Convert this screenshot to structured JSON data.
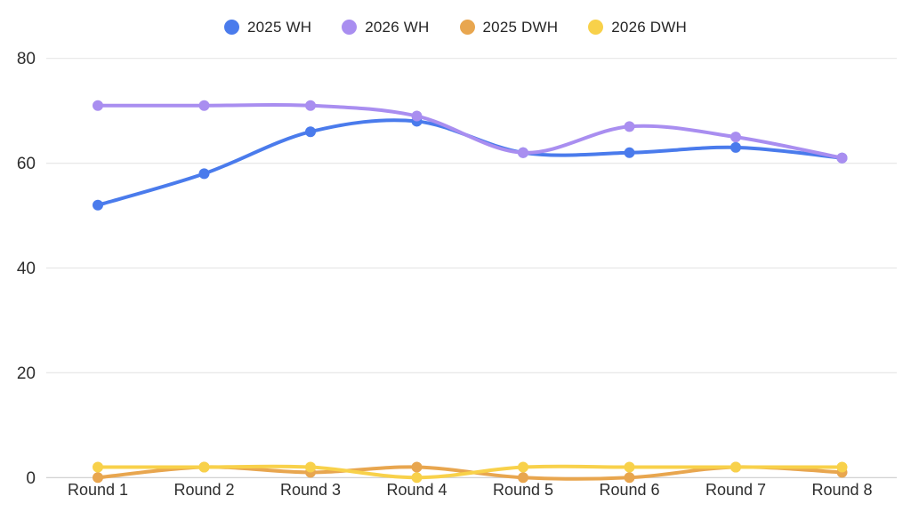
{
  "chart_data": {
    "type": "line",
    "title": "",
    "xlabel": "",
    "ylabel": "",
    "categories": [
      "Round 1",
      "Round 2",
      "Round 3",
      "Round 4",
      "Round 5",
      "Round 6",
      "Round 7",
      "Round 8"
    ],
    "series": [
      {
        "name": "2025 WH",
        "color": "#4a7bec",
        "values": [
          52,
          58,
          66,
          68,
          62,
          62,
          63,
          61
        ]
      },
      {
        "name": "2026 WH",
        "color": "#a98ef0",
        "values": [
          71,
          71,
          71,
          69,
          62,
          67,
          65,
          61
        ]
      },
      {
        "name": "2025 DWH",
        "color": "#e8a64f",
        "values": [
          0,
          2,
          1,
          2,
          0,
          0,
          2,
          1
        ]
      },
      {
        "name": "2026 DWH",
        "color": "#f8d14a",
        "values": [
          2,
          2,
          2,
          0,
          2,
          2,
          2,
          2
        ]
      }
    ],
    "ylim": [
      0,
      80
    ],
    "yticks": [
      0,
      20,
      40,
      60,
      80
    ],
    "grid": true,
    "smooth": true,
    "legend_position": "top",
    "line_width": 4,
    "point_radius": 6
  },
  "colors": {
    "background": "#ffffff",
    "gridline": "#e7e7e7",
    "baseline": "#cccccc",
    "axis_text": "#2e2e2e"
  }
}
